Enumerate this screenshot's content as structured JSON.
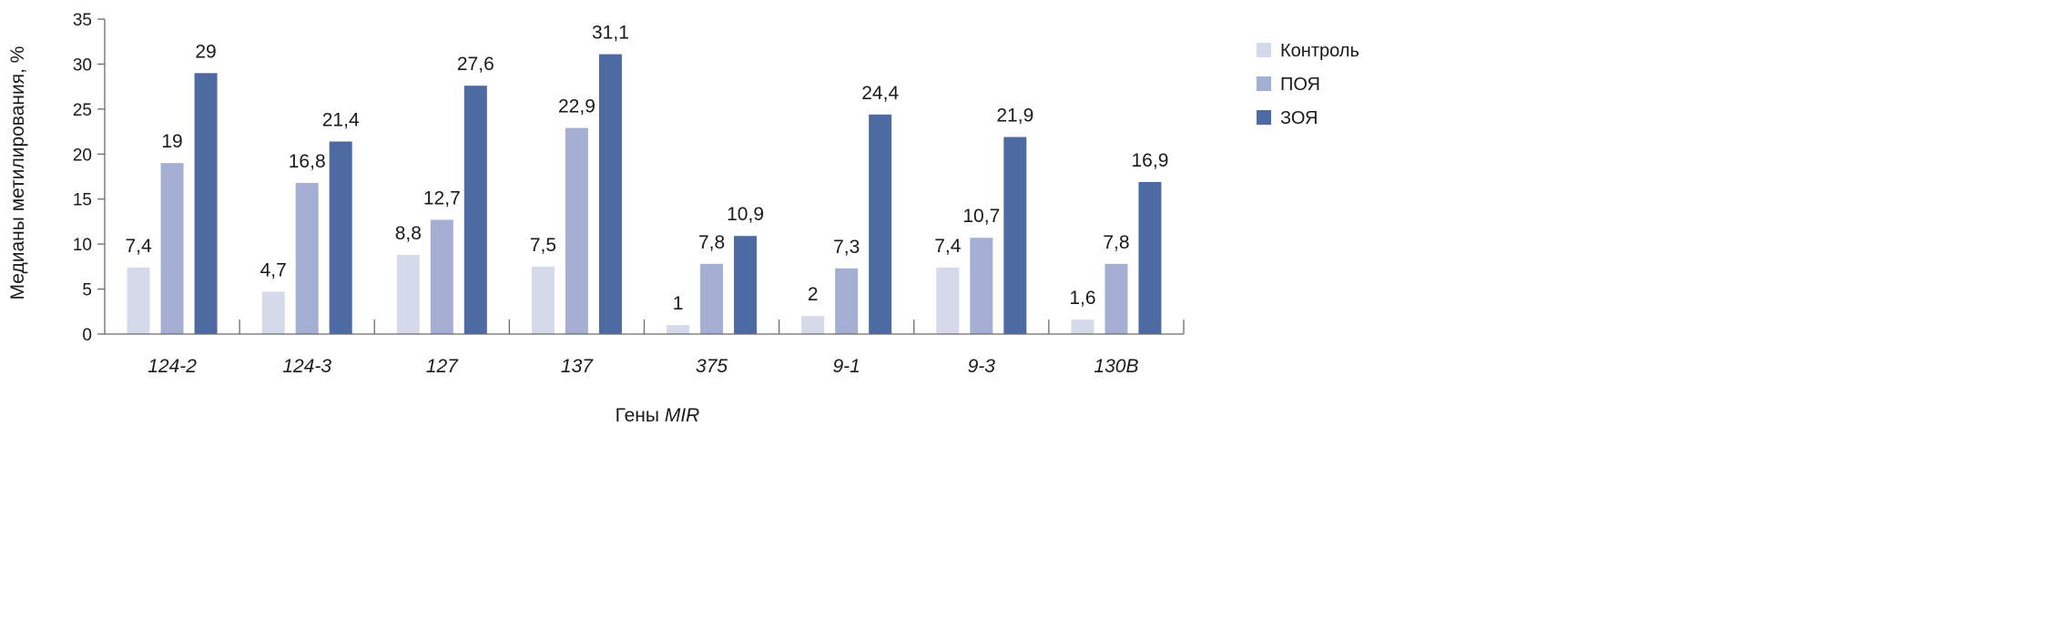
{
  "chart_data": {
    "type": "bar",
    "categories": [
      "124-2",
      "124-3",
      "127",
      "137",
      "375",
      "9-1",
      "9-3",
      "130B"
    ],
    "series": [
      {
        "name": "Контроль",
        "color": "#d5d9e9",
        "values": [
          7.4,
          4.7,
          8.8,
          7.5,
          1,
          2,
          7.4,
          1.6
        ],
        "labels": [
          "7,4",
          "4,7",
          "8,8",
          "7,5",
          "1",
          "2",
          "7,4",
          "1,6"
        ]
      },
      {
        "name": "ПОЯ",
        "color": "#a4afd3",
        "values": [
          19,
          16.8,
          12.7,
          22.9,
          7.8,
          7.3,
          10.7,
          7.8
        ],
        "labels": [
          "19",
          "16,8",
          "12,7",
          "22,9",
          "7,8",
          "7,3",
          "10,7",
          "7,8"
        ]
      },
      {
        "name": "ЗОЯ",
        "color": "#4d6aa3",
        "values": [
          29,
          21.4,
          27.6,
          31.1,
          10.9,
          24.4,
          21.9,
          16.9
        ],
        "labels": [
          "29",
          "21,4",
          "27,6",
          "31,1",
          "10,9",
          "24,4",
          "21,9",
          "16,9"
        ]
      }
    ],
    "ylabel": "Медианы метилирования, %",
    "xlabel_prefix": "Гены ",
    "xlabel_italic": "MIR",
    "ylim": [
      0,
      35
    ],
    "yticks": [
      0,
      5,
      10,
      15,
      20,
      25,
      30,
      35
    ],
    "grid": false,
    "legend_position": "right"
  }
}
